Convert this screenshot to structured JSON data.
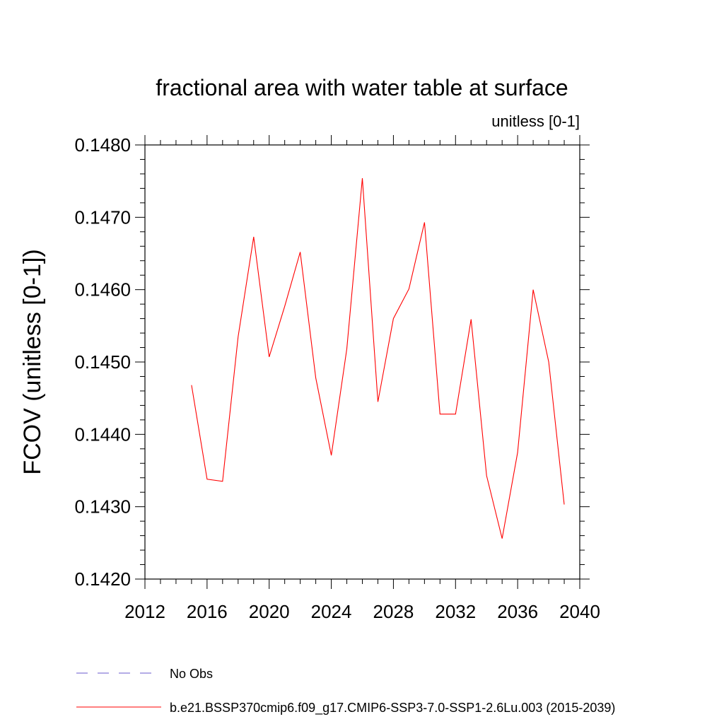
{
  "chart_data": {
    "type": "line",
    "title": "fractional area with water table at surface",
    "subtitle": "unitless [0-1]",
    "xlabel": "",
    "ylabel": "FCOV  (unitless [0-1])",
    "xlim": [
      2012,
      2040
    ],
    "ylim": [
      0.142,
      0.148
    ],
    "xticks": [
      2012,
      2016,
      2020,
      2024,
      2028,
      2032,
      2036,
      2040
    ],
    "yticks": [
      0.142,
      0.143,
      0.144,
      0.145,
      0.146,
      0.147,
      0.148
    ],
    "xtick_labels": [
      "2012",
      "2016",
      "2020",
      "2024",
      "2028",
      "2032",
      "2036",
      "2040"
    ],
    "ytick_labels": [
      "0.1420",
      "0.1430",
      "0.1440",
      "0.1450",
      "0.1460",
      "0.1470",
      "0.1480"
    ],
    "grid": false,
    "legend_position": "bottom",
    "series": [
      {
        "name": "b.e21.BSSP370cmip6.f09_g17.CMIP6-SSP3-7.0-SSP1-2.6Lu.003 (2015-2039)",
        "color": "#ff0000",
        "style": "solid",
        "x": [
          2015,
          2016,
          2017,
          2018,
          2019,
          2020,
          2021,
          2022,
          2023,
          2024,
          2025,
          2026,
          2027,
          2028,
          2029,
          2030,
          2031,
          2032,
          2033,
          2034,
          2035,
          2036,
          2037,
          2038,
          2039
        ],
        "y": [
          0.14468,
          0.14338,
          0.14335,
          0.14535,
          0.14673,
          0.14507,
          0.14577,
          0.14652,
          0.14478,
          0.14371,
          0.14518,
          0.14754,
          0.14445,
          0.1456,
          0.14601,
          0.14693,
          0.14428,
          0.14428,
          0.14559,
          0.14343,
          0.14256,
          0.14375,
          0.146,
          0.145,
          0.14303
        ]
      }
    ],
    "legend": [
      {
        "label": "No Obs",
        "color": "#6a5acd",
        "style": "dashed"
      },
      {
        "label": "b.e21.BSSP370cmip6.f09_g17.CMIP6-SSP3-7.0-SSP1-2.6Lu.003 (2015-2039)",
        "color": "#ff0000",
        "style": "solid"
      }
    ]
  }
}
